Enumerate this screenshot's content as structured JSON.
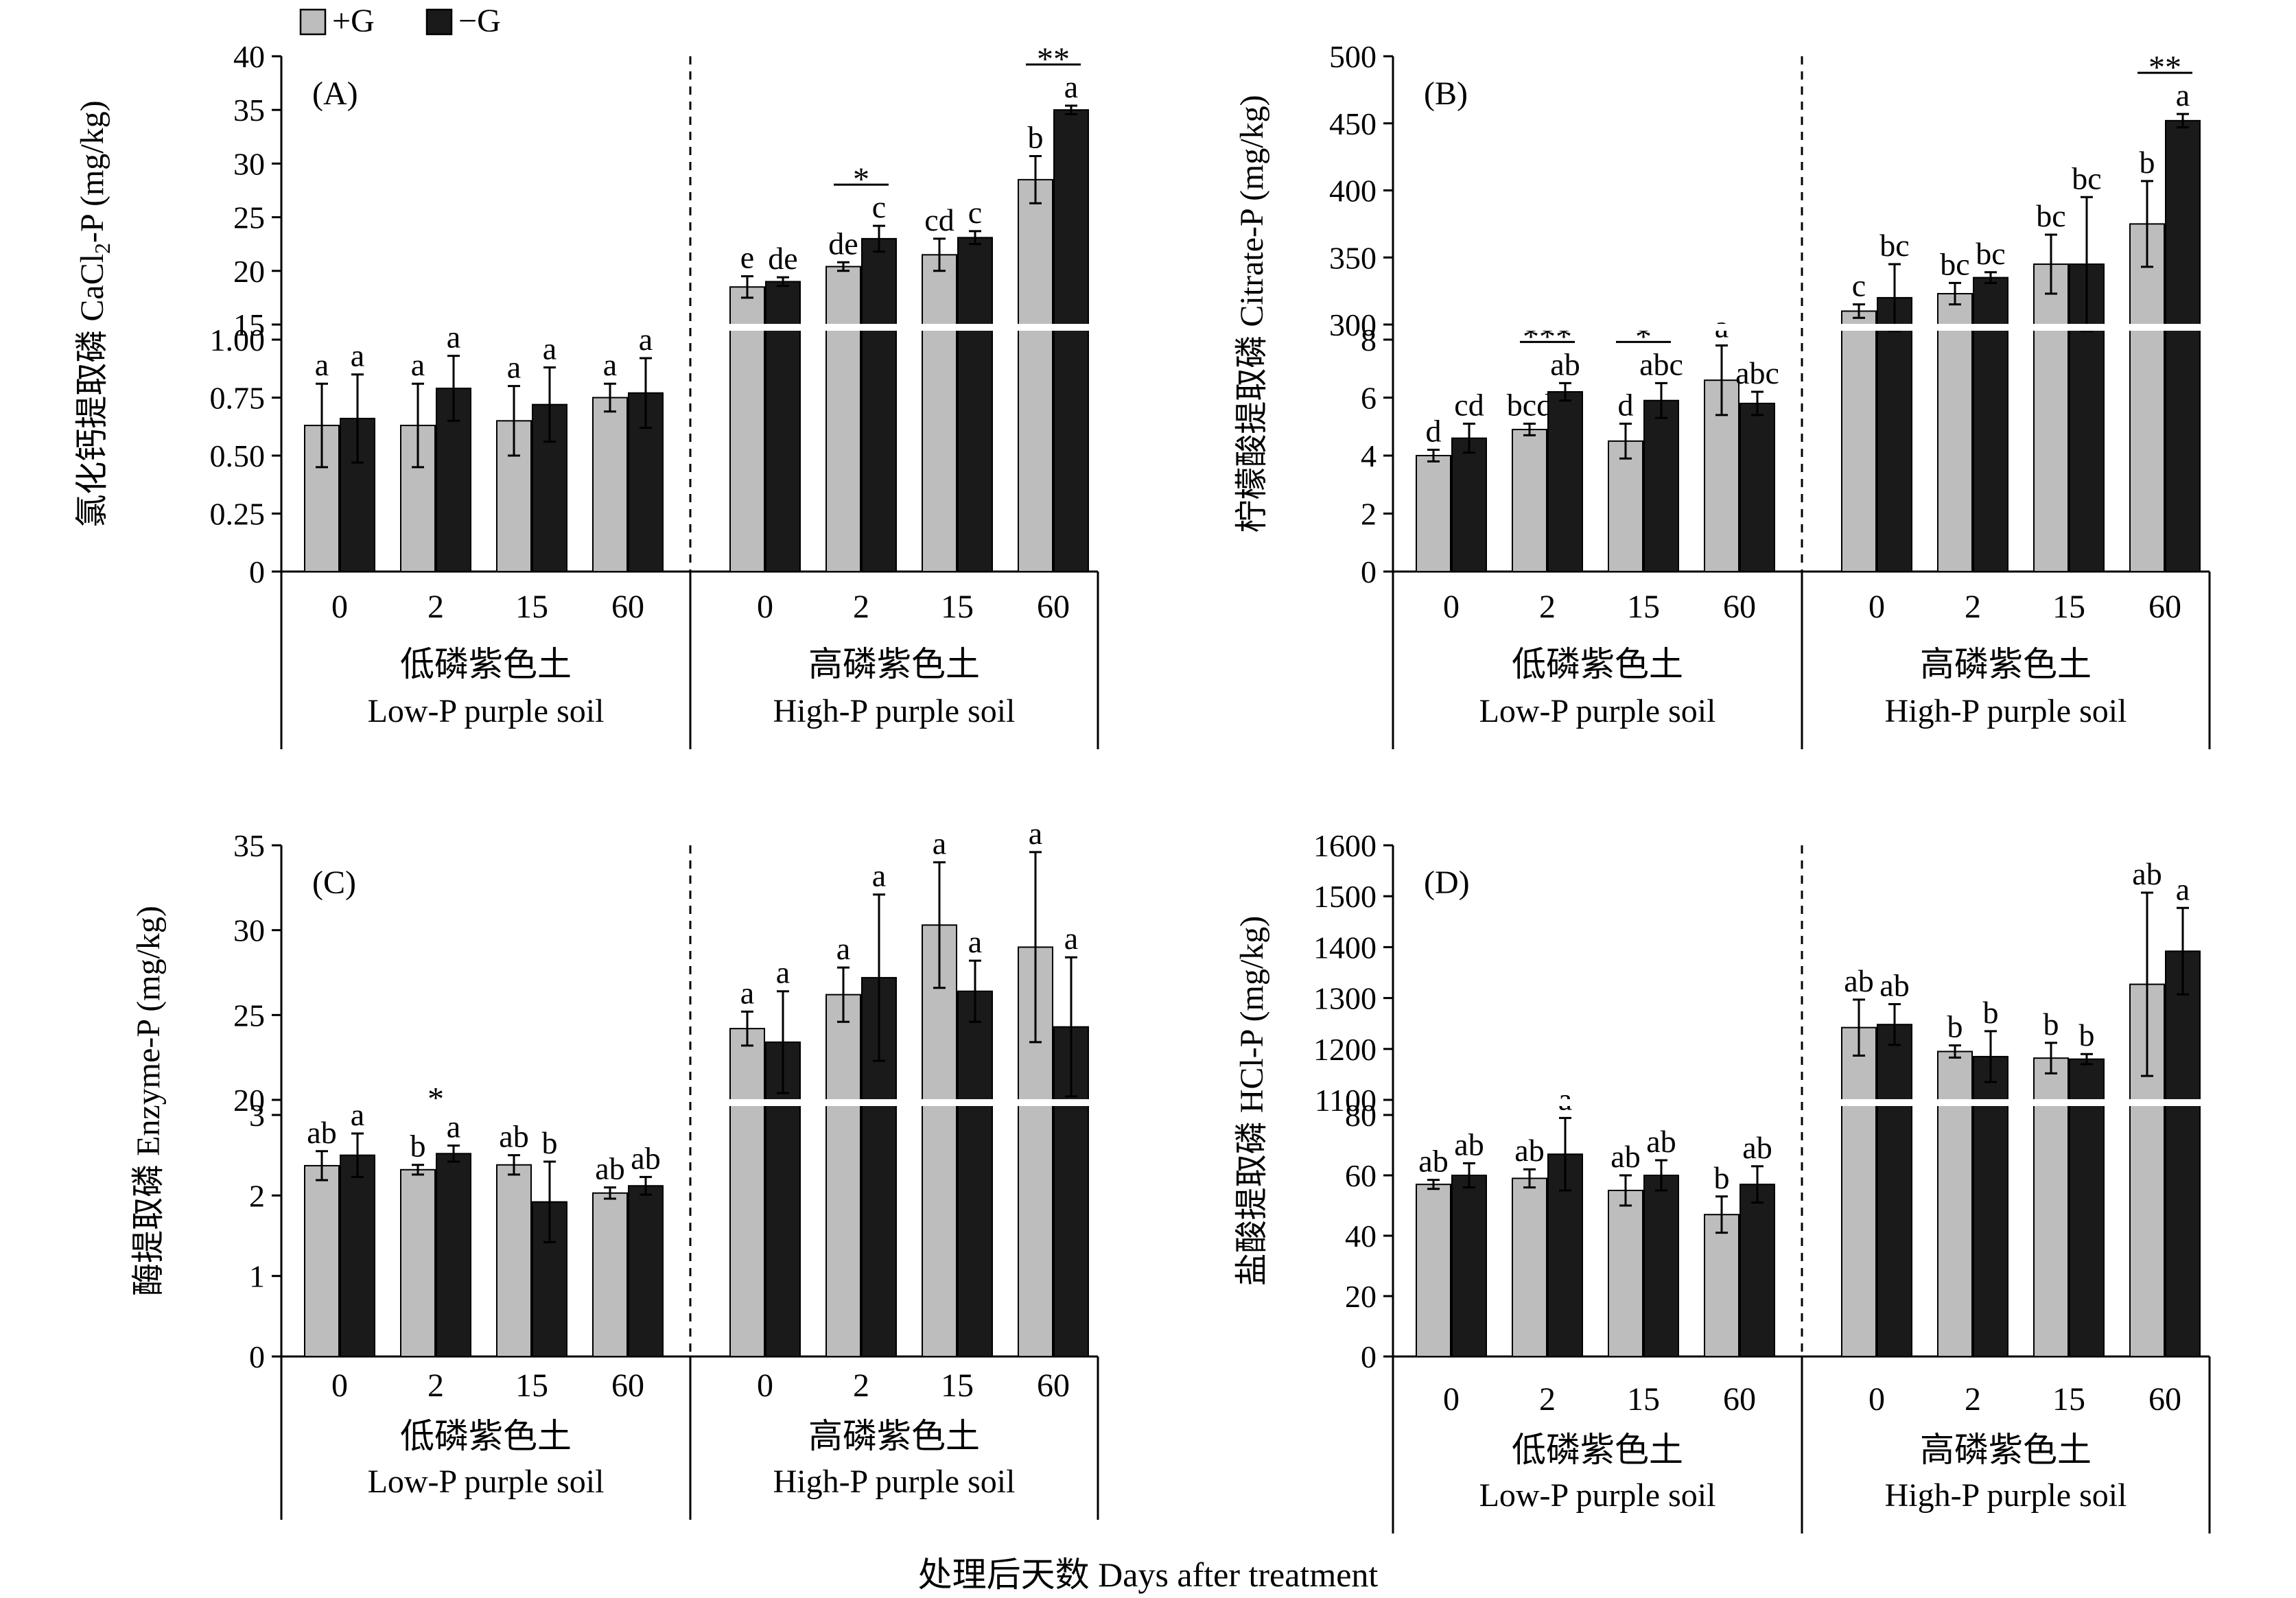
{
  "legend": {
    "items": [
      {
        "label": "+G",
        "color": "#bdbdbd"
      },
      {
        "label": "−G",
        "color": "#1a1a1a"
      }
    ]
  },
  "xaxis": {
    "title": "处理后天数 Days after treatment",
    "groups": [
      {
        "zh": "低磷紫色土",
        "en": "Low-P purple soil"
      },
      {
        "zh": "高磷紫色土",
        "en": "High-P purple soil"
      }
    ]
  },
  "chart_data": [
    {
      "type": "bar",
      "panel": "(A)",
      "ylabel_zh": "氯化钙提取磷",
      "ylabel_en": "CaCl",
      "ylabel_sub": "2",
      "ylabel_unit": "-P (mg/kg)",
      "categories": [
        "0",
        "2",
        "15",
        "60",
        "0",
        "2",
        "15",
        "60"
      ],
      "axis_break": true,
      "lower_range": [
        0,
        1.0
      ],
      "upper_range": [
        15,
        40
      ],
      "yticks_lower": [
        "0",
        "0.25",
        "0.50",
        "0.75",
        "1.00"
      ],
      "yticks_upper": [
        "15",
        "20",
        "25",
        "30",
        "35",
        "40"
      ],
      "series": [
        {
          "name": "+G",
          "values": [
            0.63,
            0.63,
            0.65,
            0.75,
            18.5,
            20.4,
            21.5,
            28.5
          ],
          "errors": [
            0.18,
            0.18,
            0.15,
            0.06,
            1.0,
            0.4,
            1.5,
            2.2
          ],
          "letters": [
            "a",
            "a",
            "a",
            "a",
            "e",
            "de",
            "cd",
            "b"
          ]
        },
        {
          "name": "−G",
          "values": [
            0.66,
            0.79,
            0.72,
            0.77,
            19.0,
            23.0,
            23.1,
            35.0
          ],
          "errors": [
            0.19,
            0.14,
            0.16,
            0.15,
            0.4,
            1.2,
            0.6,
            0.4
          ],
          "letters": [
            "a",
            "a",
            "a",
            "a",
            "de",
            "c",
            "c",
            "a"
          ]
        }
      ],
      "significance": [
        {
          "category_index": 5,
          "mark": "*"
        },
        {
          "category_index": 7,
          "mark": "**"
        }
      ]
    },
    {
      "type": "bar",
      "panel": "(B)",
      "ylabel_zh": "柠檬酸提取磷",
      "ylabel_en": "Citrate-P (mg/kg)",
      "ylabel_sub": "",
      "ylabel_unit": "",
      "categories": [
        "0",
        "2",
        "15",
        "60",
        "0",
        "2",
        "15",
        "60"
      ],
      "axis_break": true,
      "lower_range": [
        0,
        8
      ],
      "upper_range": [
        300,
        500
      ],
      "yticks_lower": [
        "0",
        "2",
        "4",
        "6",
        "8"
      ],
      "yticks_upper": [
        "300",
        "350",
        "400",
        "450",
        "500"
      ],
      "series": [
        {
          "name": "+G",
          "values": [
            4.0,
            4.9,
            4.5,
            6.6,
            310,
            323,
            345,
            375
          ],
          "errors": [
            0.2,
            0.2,
            0.6,
            1.2,
            5,
            8,
            22,
            32
          ],
          "letters": [
            "d",
            "bcd",
            "d",
            "a",
            "c",
            "bc",
            "bc",
            "b"
          ]
        },
        {
          "name": "−G",
          "values": [
            4.6,
            6.2,
            5.9,
            5.8,
            320,
            335,
            345,
            452
          ],
          "errors": [
            0.5,
            0.3,
            0.6,
            0.4,
            25,
            4,
            50,
            5
          ],
          "letters": [
            "cd",
            "ab",
            "abc",
            "abc",
            "bc",
            "bc",
            "bc",
            "a"
          ]
        }
      ],
      "significance": [
        {
          "category_index": 1,
          "mark": "***"
        },
        {
          "category_index": 2,
          "mark": "*"
        },
        {
          "category_index": 7,
          "mark": "**"
        }
      ]
    },
    {
      "type": "bar",
      "panel": "(C)",
      "ylabel_zh": "酶提取磷",
      "ylabel_en": "Enzyme-P (mg/kg)",
      "ylabel_sub": "",
      "ylabel_unit": "",
      "categories": [
        "0",
        "2",
        "15",
        "60",
        "0",
        "2",
        "15",
        "60"
      ],
      "axis_break": true,
      "lower_range": [
        0,
        3
      ],
      "upper_range": [
        20,
        35
      ],
      "yticks_lower": [
        "0",
        "1",
        "2",
        "3"
      ],
      "yticks_upper": [
        "20",
        "25",
        "30",
        "35"
      ],
      "series": [
        {
          "name": "+G",
          "values": [
            2.37,
            2.32,
            2.38,
            2.03,
            24.2,
            26.2,
            30.3,
            29.0
          ],
          "errors": [
            0.18,
            0.06,
            0.12,
            0.07,
            1.0,
            1.6,
            3.7,
            5.6
          ],
          "letters": [
            "ab",
            "b",
            "ab",
            "ab",
            "a",
            "a",
            "a",
            "a"
          ]
        },
        {
          "name": "−G",
          "values": [
            2.5,
            2.52,
            1.92,
            2.12,
            23.4,
            27.2,
            26.4,
            24.3
          ],
          "errors": [
            0.27,
            0.1,
            0.5,
            0.11,
            3.0,
            4.9,
            1.8,
            4.1
          ],
          "letters": [
            "a",
            "a",
            "b",
            "ab",
            "a",
            "a",
            "a",
            "a"
          ]
        }
      ],
      "significance": [
        {
          "category_index": 1,
          "mark": "*"
        }
      ]
    },
    {
      "type": "bar",
      "panel": "(D)",
      "ylabel_zh": "盐酸提取磷",
      "ylabel_en": "HCl-P (mg/kg)",
      "ylabel_sub": "",
      "ylabel_unit": "",
      "categories": [
        "0",
        "2",
        "15",
        "60",
        "0",
        "2",
        "15",
        "60"
      ],
      "axis_break": true,
      "lower_range": [
        0,
        80
      ],
      "upper_range": [
        1100,
        1600
      ],
      "yticks_lower": [
        "0",
        "20",
        "40",
        "60",
        "80"
      ],
      "yticks_upper": [
        "1100",
        "1200",
        "1300",
        "1400",
        "1500",
        "1600"
      ],
      "series": [
        {
          "name": "+G",
          "values": [
            57,
            59,
            55,
            47,
            1242,
            1195,
            1182,
            1327
          ],
          "errors": [
            1.5,
            3,
            5,
            6,
            55,
            12,
            30,
            180
          ],
          "letters": [
            "ab",
            "ab",
            "ab",
            "b",
            "ab",
            "b",
            "b",
            "ab"
          ]
        },
        {
          "name": "−G",
          "values": [
            60,
            67,
            60,
            57,
            1248,
            1185,
            1180,
            1392
          ],
          "errors": [
            4,
            12,
            5,
            6,
            40,
            50,
            10,
            85
          ],
          "letters": [
            "ab",
            "a",
            "ab",
            "ab",
            "ab",
            "b",
            "b",
            "a"
          ]
        }
      ],
      "significance": []
    }
  ]
}
